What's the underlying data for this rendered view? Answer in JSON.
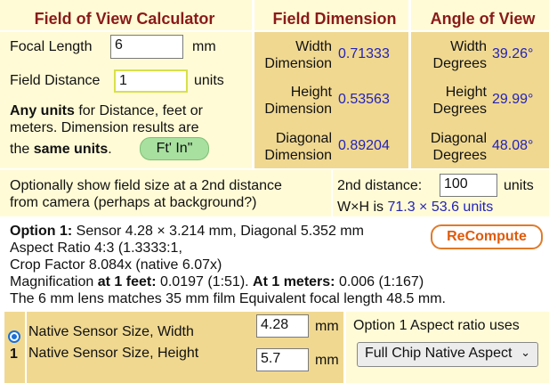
{
  "headers": {
    "calculator": "Field of View Calculator",
    "field_dimension": "Field Dimension",
    "angle_of_view": "Angle of View"
  },
  "inputs": {
    "focal_length_label": "Focal Length",
    "focal_length_value": "6",
    "focal_length_unit": "mm",
    "field_distance_label": "Field Distance",
    "field_distance_value": "1",
    "field_distance_unit": "units"
  },
  "note": {
    "line1_bold": "Any units",
    "line1_rest": " for Distance, feet or",
    "line2": "meters. Dimension results are",
    "line3_pre": "the ",
    "line3_bold": "same units",
    "line3_post": ".",
    "ftin_button": "Ft' In\""
  },
  "dimensions": {
    "width_label_1": "Width",
    "width_label_2": "Dimension",
    "width_value": "0.71333",
    "height_label_1": "Height",
    "height_label_2": "Dimension",
    "height_value": "0.53563",
    "diagonal_label_1": "Diagonal",
    "diagonal_label_2": "Dimension",
    "diagonal_value": "0.89204"
  },
  "angles": {
    "width_label_1": "Width",
    "width_label_2": "Degrees",
    "width_value": "39.26°",
    "height_label_1": "Height",
    "height_label_2": "Degrees",
    "height_value": "29.99°",
    "diagonal_label_1": "Diagonal",
    "diagonal_label_2": "Degrees",
    "diagonal_value": "48.08°"
  },
  "second_distance": {
    "description_1": "Optionally show field size at a 2nd distance",
    "description_2": "from camera (perhaps at background?)",
    "label": "2nd distance:",
    "value": "100",
    "unit": "units",
    "wh_prefix": "W×H is ",
    "wh_value": "71.3 × 53.6 units"
  },
  "results": {
    "option_label": "Option 1:",
    "line1": " Sensor 4.28 × 3.214 mm, Diagonal 5.352 mm",
    "line2": "Aspect Ratio 4:3 (1.3333:1,",
    "line3": "Crop Factor 8.084x (native 6.07x)",
    "line4_pre": "Magnification ",
    "line4_bold1": "at 1 feet:",
    "line4_mid": " 0.0197 (1:51). ",
    "line4_bold2": "At 1 meters:",
    "line4_post": " 0.006 (1:167)",
    "line5": "The 6 mm lens matches 35 mm film Equivalent focal length 48.5 mm.",
    "recompute_button": "ReCompute"
  },
  "sensor": {
    "option_number": "1",
    "width_label": "Native Sensor Size, Width",
    "width_value": "4.28",
    "width_unit": "mm",
    "height_label": "Native Sensor Size, Height",
    "height_value": "5.7",
    "height_unit": "mm",
    "aspect_label": "Option 1 Aspect ratio uses",
    "aspect_selected": "Full Chip Native Aspect"
  },
  "colors": {
    "header_text": "#8a1a1a",
    "value_blue": "#2222bb",
    "light_cell": "#fffbd6",
    "dark_cell": "#f0d890",
    "radio_blue": "#1a6fd6"
  }
}
